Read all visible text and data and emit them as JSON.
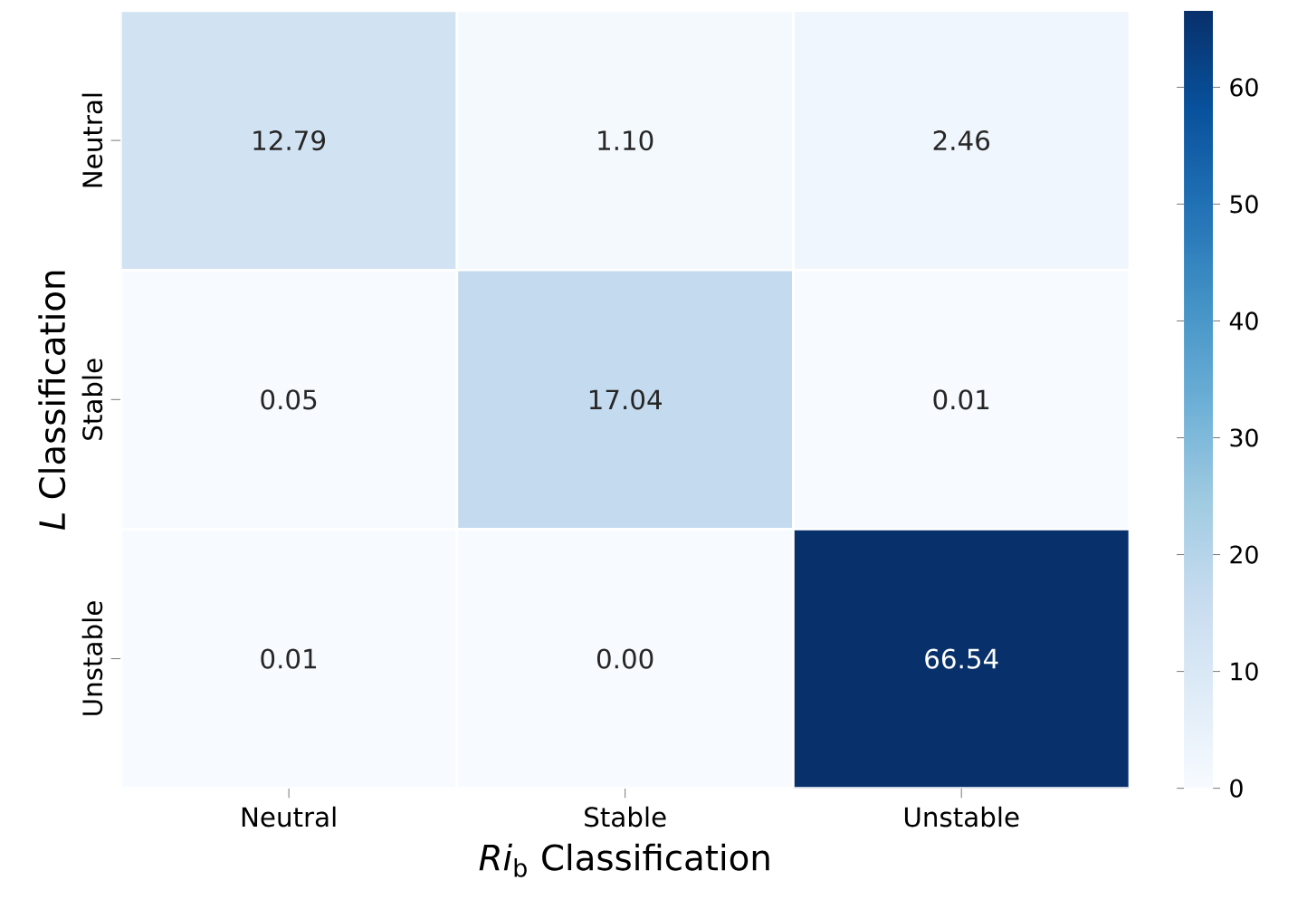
{
  "chart_data": {
    "type": "heatmap",
    "xlabel": "*Ri*$_{b}$ Classification",
    "ylabel": "*L* Classification",
    "categories": [
      "Neutral",
      "Stable",
      "Unstable"
    ],
    "y_categories": [
      "Neutral",
      "Stable",
      "Unstable"
    ],
    "cells": [
      [
        12.79,
        1.1,
        2.46
      ],
      [
        0.05,
        17.04,
        0.01
      ],
      [
        0.01,
        0.0,
        66.54
      ]
    ],
    "cell_labels": [
      [
        "12.79",
        "1.10",
        "2.46"
      ],
      [
        "0.05",
        "17.04",
        "0.01"
      ],
      [
        "0.01",
        "0.00",
        "66.54"
      ]
    ],
    "clim": [
      0,
      66.54
    ],
    "cticks": [
      0,
      10,
      20,
      30,
      40,
      50,
      60
    ]
  }
}
